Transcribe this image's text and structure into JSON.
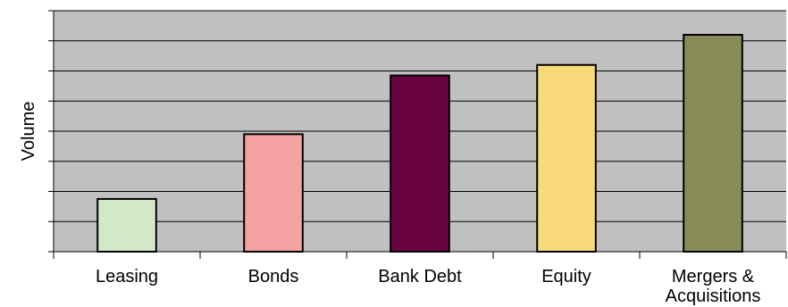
{
  "chart_data": {
    "type": "bar",
    "categories": [
      "Leasing",
      "Bonds",
      "Bank Debt",
      "Equity",
      "Mergers & Acquisitions"
    ],
    "category_lines": [
      [
        "Leasing"
      ],
      [
        "Bonds"
      ],
      [
        "Bank Debt"
      ],
      [
        "Equity"
      ],
      [
        "Mergers &",
        "Acquisitions"
      ]
    ],
    "values": [
      1.75,
      3.9,
      5.85,
      6.2,
      7.2
    ],
    "ylim": [
      0,
      8
    ],
    "ylabel": "Volume",
    "xlabel": "",
    "title": "",
    "grid": true,
    "y_tick_labels_shown": false,
    "legend": "none",
    "colors": {
      "plot_background": "#c0c0c0",
      "gridline": "#000000",
      "bars": [
        "#d2e8c6",
        "#f4a3a2",
        "#6a0341",
        "#f9da7a",
        "#898b59"
      ],
      "bar_outline": "#000000"
    }
  }
}
